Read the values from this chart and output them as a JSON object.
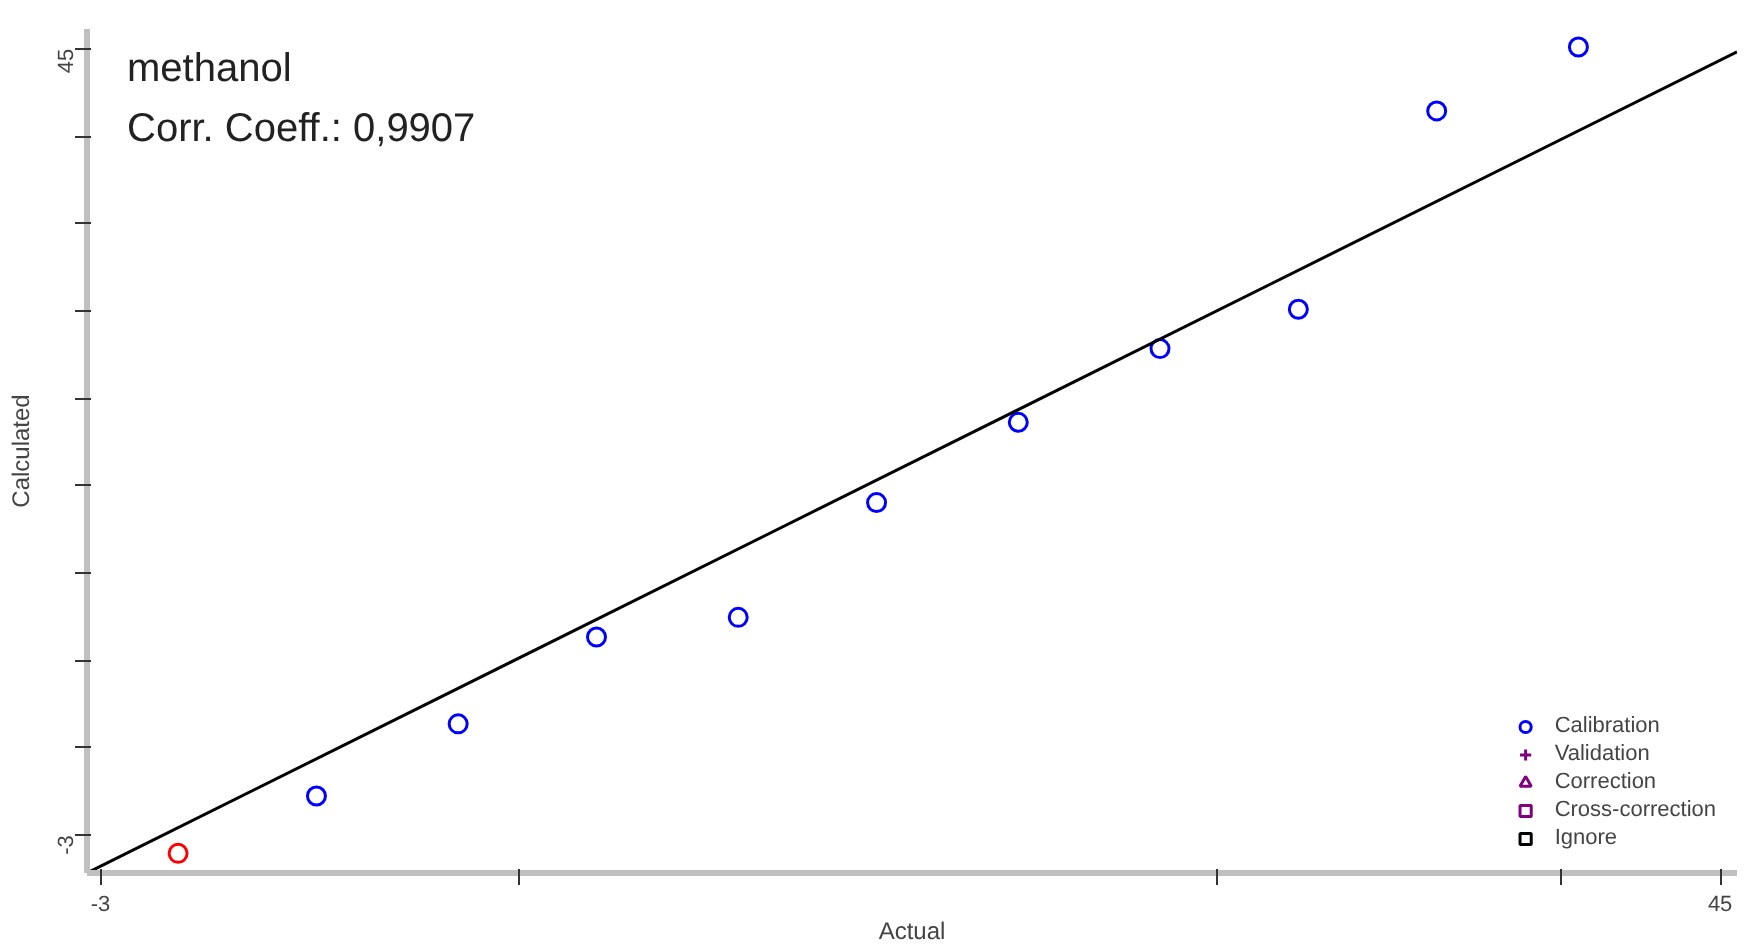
{
  "chart_data": {
    "type": "scatter",
    "xlabel": "Actual",
    "ylabel": "Calculated",
    "annotations": [
      "methanol",
      "Corr. Coeff.: 0,9907"
    ],
    "xlim": [
      -3.4,
      45.5
    ],
    "ylim": [
      -5.3,
      46.2
    ],
    "xticks": [
      -3,
      {
        "value": 9.4,
        "label": null
      },
      {
        "value": 30.1,
        "label": null
      },
      {
        "value": 40.3,
        "label": null
      },
      45
    ],
    "yticks": [
      -3,
      {
        "value": 2.33,
        "label": null
      },
      {
        "value": 7.67,
        "label": null
      },
      {
        "value": 13,
        "label": null
      },
      {
        "value": 18.33,
        "label": null
      },
      {
        "value": 23.67,
        "label": null
      },
      {
        "value": 29,
        "label": null
      },
      {
        "value": 34.33,
        "label": null
      },
      {
        "value": 39.67,
        "label": null
      },
      45
    ],
    "grid": false,
    "legend": "bottom right",
    "series": [
      {
        "name": "Calibration",
        "color": "#0000ff",
        "marker": "circle",
        "x": [
          3.4,
          7.6,
          11.7,
          15.9,
          20.0,
          24.2,
          28.4,
          32.5,
          36.6,
          40.8
        ],
        "values": [
          -0.6,
          3.8,
          9.1,
          10.3,
          17.3,
          22.2,
          26.7,
          29.1,
          41.2,
          45.1
        ]
      },
      {
        "name": "Validation",
        "color": "#800080",
        "marker": "cross"
      },
      {
        "name": "Correction",
        "color": "#800080",
        "marker": "triangle"
      },
      {
        "name": "Cross-correction",
        "color": "#800080",
        "marker": "square"
      },
      {
        "name": "Ignore",
        "color": "#000000",
        "marker": "square"
      },
      {
        "color": "#ff0000",
        "marker": "circle",
        "x": [
          -0.7
        ],
        "values": [
          -4.1
        ]
      },
      {
        "type": "line",
        "color": "#000000",
        "x": [
          -3.4,
          45.5
        ],
        "values": [
          -5.3,
          44.8
        ]
      }
    ]
  }
}
